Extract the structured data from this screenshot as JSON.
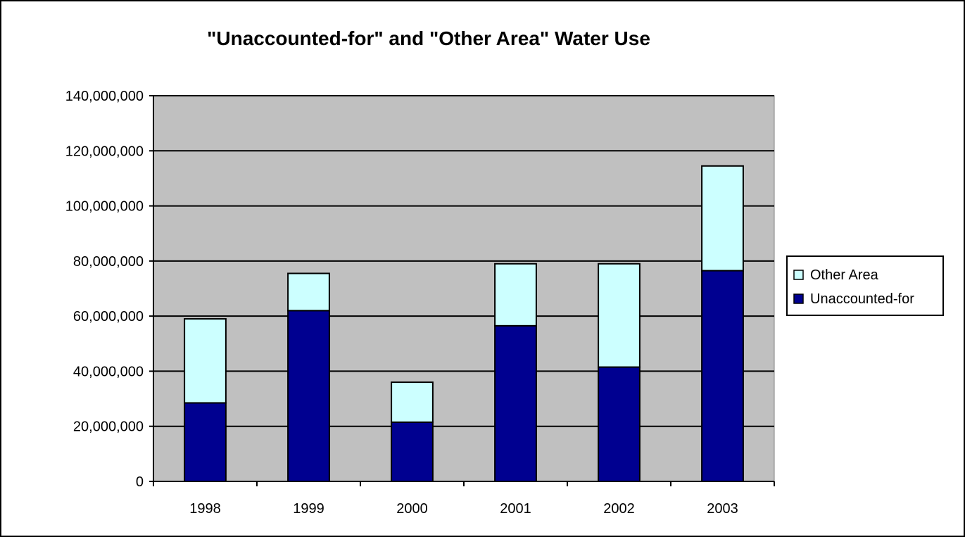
{
  "chart_data": {
    "type": "bar",
    "stacked": true,
    "title": "\"Unaccounted-for\" and \"Other Area\" Water Use",
    "xlabel": "",
    "ylabel": "",
    "categories": [
      "1998",
      "1999",
      "2000",
      "2001",
      "2002",
      "2003"
    ],
    "series": [
      {
        "name": "Unaccounted-for",
        "color": "#000090",
        "values": [
          28500000,
          62000000,
          21500000,
          56500000,
          41500000,
          76500000
        ]
      },
      {
        "name": "Other Area",
        "color": "#ccffff",
        "values": [
          30500000,
          13500000,
          14500000,
          22500000,
          37500000,
          38000000
        ]
      }
    ],
    "ylim": [
      0,
      140000000
    ],
    "yticks": [
      0,
      20000000,
      40000000,
      60000000,
      80000000,
      100000000,
      120000000,
      140000000
    ],
    "ytick_labels": [
      "0",
      "20,000,000",
      "40,000,000",
      "60,000,000",
      "80,000,000",
      "100,000,000",
      "120,000,000",
      "140,000,000"
    ],
    "grid": true,
    "plot_background": "#c0c0c0",
    "legend": {
      "position": "right",
      "entries": [
        "Other Area",
        "Unaccounted-for"
      ]
    }
  }
}
